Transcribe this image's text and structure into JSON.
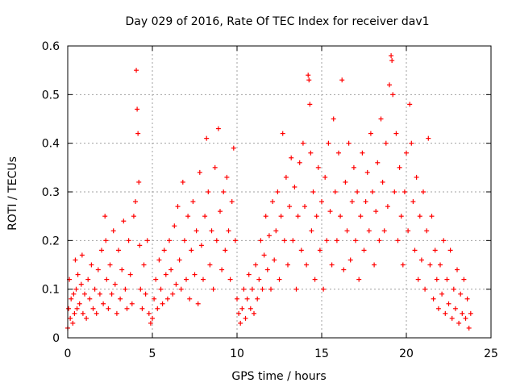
{
  "chart_data": {
    "type": "scatter",
    "title": "Day 029 of 2016, Rate Of TEC Index for receiver dav1",
    "xlabel": "GPS time / hours",
    "ylabel": "ROTI / TECUs",
    "xlim": [
      0,
      25
    ],
    "ylim": [
      0,
      0.6
    ],
    "x_ticks": [
      "0",
      "5",
      "10",
      "15",
      "20",
      "25"
    ],
    "x_tick_values": [
      0,
      5,
      10,
      15,
      20,
      25
    ],
    "y_ticks": [
      "0",
      "0.1",
      "0.2",
      "0.3",
      "0.4",
      "0.5",
      "0.6"
    ],
    "y_tick_values": [
      0,
      0.1,
      0.2,
      0.3,
      0.4,
      0.5,
      0.6
    ],
    "grid": true,
    "marker": "+",
    "color": "#ff0000",
    "series": [
      {
        "values_note": "",
        "points": [
          [
            0.0,
            0.02
          ],
          [
            0.05,
            0.06
          ],
          [
            0.1,
            0.12
          ],
          [
            0.15,
            0.04
          ],
          [
            0.2,
            0.08
          ],
          [
            0.3,
            0.03
          ],
          [
            0.35,
            0.09
          ],
          [
            0.4,
            0.05
          ],
          [
            0.45,
            0.16
          ],
          [
            0.5,
            0.1
          ],
          [
            0.55,
            0.06
          ],
          [
            0.6,
            0.13
          ],
          [
            0.7,
            0.07
          ],
          [
            0.8,
            0.11
          ],
          [
            0.85,
            0.17
          ],
          [
            0.9,
            0.05
          ],
          [
            1.0,
            0.09
          ],
          [
            1.1,
            0.04
          ],
          [
            1.2,
            0.12
          ],
          [
            1.3,
            0.08
          ],
          [
            1.4,
            0.15
          ],
          [
            1.5,
            0.06
          ],
          [
            1.6,
            0.1
          ],
          [
            1.7,
            0.05
          ],
          [
            1.8,
            0.14
          ],
          [
            1.9,
            0.09
          ],
          [
            2.0,
            0.18
          ],
          [
            2.1,
            0.07
          ],
          [
            2.2,
            0.25
          ],
          [
            2.25,
            0.2
          ],
          [
            2.3,
            0.12
          ],
          [
            2.4,
            0.06
          ],
          [
            2.5,
            0.15
          ],
          [
            2.6,
            0.09
          ],
          [
            2.7,
            0.22
          ],
          [
            2.8,
            0.11
          ],
          [
            2.9,
            0.05
          ],
          [
            3.0,
            0.18
          ],
          [
            3.1,
            0.08
          ],
          [
            3.2,
            0.14
          ],
          [
            3.3,
            0.24
          ],
          [
            3.4,
            0.1
          ],
          [
            3.5,
            0.06
          ],
          [
            3.6,
            0.2
          ],
          [
            3.7,
            0.13
          ],
          [
            3.8,
            0.07
          ],
          [
            3.9,
            0.25
          ],
          [
            4.0,
            0.28
          ],
          [
            4.05,
            0.55
          ],
          [
            4.1,
            0.47
          ],
          [
            4.15,
            0.42
          ],
          [
            4.2,
            0.32
          ],
          [
            4.25,
            0.19
          ],
          [
            4.3,
            0.1
          ],
          [
            4.4,
            0.06
          ],
          [
            4.5,
            0.15
          ],
          [
            4.6,
            0.09
          ],
          [
            4.7,
            0.2
          ],
          [
            4.8,
            0.05
          ],
          [
            4.9,
            0.03
          ],
          [
            5.0,
            0.04
          ],
          [
            5.1,
            0.08
          ],
          [
            5.2,
            0.12
          ],
          [
            5.3,
            0.06
          ],
          [
            5.4,
            0.16
          ],
          [
            5.5,
            0.1
          ],
          [
            5.6,
            0.07
          ],
          [
            5.7,
            0.18
          ],
          [
            5.8,
            0.13
          ],
          [
            5.9,
            0.08
          ],
          [
            6.0,
            0.2
          ],
          [
            6.1,
            0.14
          ],
          [
            6.2,
            0.09
          ],
          [
            6.3,
            0.23
          ],
          [
            6.4,
            0.11
          ],
          [
            6.5,
            0.27
          ],
          [
            6.6,
            0.16
          ],
          [
            6.7,
            0.1
          ],
          [
            6.8,
            0.32
          ],
          [
            6.9,
            0.2
          ],
          [
            7.0,
            0.12
          ],
          [
            7.1,
            0.25
          ],
          [
            7.2,
            0.08
          ],
          [
            7.3,
            0.18
          ],
          [
            7.4,
            0.28
          ],
          [
            7.5,
            0.13
          ],
          [
            7.6,
            0.22
          ],
          [
            7.7,
            0.07
          ],
          [
            7.8,
            0.34
          ],
          [
            7.9,
            0.19
          ],
          [
            8.0,
            0.12
          ],
          [
            8.1,
            0.25
          ],
          [
            8.2,
            0.41
          ],
          [
            8.3,
            0.3
          ],
          [
            8.4,
            0.15
          ],
          [
            8.5,
            0.22
          ],
          [
            8.6,
            0.1
          ],
          [
            8.7,
            0.35
          ],
          [
            8.8,
            0.2
          ],
          [
            8.9,
            0.43
          ],
          [
            9.0,
            0.26
          ],
          [
            9.1,
            0.14
          ],
          [
            9.2,
            0.3
          ],
          [
            9.3,
            0.18
          ],
          [
            9.4,
            0.33
          ],
          [
            9.5,
            0.22
          ],
          [
            9.6,
            0.12
          ],
          [
            9.7,
            0.28
          ],
          [
            9.8,
            0.39
          ],
          [
            9.9,
            0.2
          ],
          [
            10.0,
            0.08
          ],
          [
            10.1,
            0.05
          ],
          [
            10.2,
            0.03
          ],
          [
            10.3,
            0.06
          ],
          [
            10.4,
            0.1
          ],
          [
            10.5,
            0.04
          ],
          [
            10.6,
            0.08
          ],
          [
            10.7,
            0.13
          ],
          [
            10.8,
            0.06
          ],
          [
            10.9,
            0.1
          ],
          [
            11.0,
            0.05
          ],
          [
            11.1,
            0.15
          ],
          [
            11.2,
            0.08
          ],
          [
            11.3,
            0.12
          ],
          [
            11.4,
            0.2
          ],
          [
            11.5,
            0.1
          ],
          [
            11.6,
            0.17
          ],
          [
            11.7,
            0.25
          ],
          [
            11.8,
            0.14
          ],
          [
            11.9,
            0.21
          ],
          [
            12.0,
            0.1
          ],
          [
            12.1,
            0.28
          ],
          [
            12.2,
            0.16
          ],
          [
            12.3,
            0.22
          ],
          [
            12.4,
            0.3
          ],
          [
            12.5,
            0.12
          ],
          [
            12.6,
            0.25
          ],
          [
            12.7,
            0.42
          ],
          [
            12.8,
            0.2
          ],
          [
            12.9,
            0.33
          ],
          [
            13.0,
            0.15
          ],
          [
            13.1,
            0.27
          ],
          [
            13.2,
            0.37
          ],
          [
            13.3,
            0.2
          ],
          [
            13.4,
            0.31
          ],
          [
            13.5,
            0.1
          ],
          [
            13.6,
            0.25
          ],
          [
            13.7,
            0.36
          ],
          [
            13.8,
            0.18
          ],
          [
            13.9,
            0.4
          ],
          [
            14.0,
            0.27
          ],
          [
            14.1,
            0.15
          ],
          [
            14.2,
            0.54
          ],
          [
            14.25,
            0.53
          ],
          [
            14.3,
            0.48
          ],
          [
            14.35,
            0.38
          ],
          [
            14.4,
            0.22
          ],
          [
            14.5,
            0.3
          ],
          [
            14.6,
            0.12
          ],
          [
            14.7,
            0.25
          ],
          [
            14.8,
            0.35
          ],
          [
            14.9,
            0.18
          ],
          [
            15.0,
            0.28
          ],
          [
            15.1,
            0.1
          ],
          [
            15.2,
            0.33
          ],
          [
            15.3,
            0.2
          ],
          [
            15.4,
            0.4
          ],
          [
            15.5,
            0.26
          ],
          [
            15.6,
            0.15
          ],
          [
            15.7,
            0.45
          ],
          [
            15.8,
            0.3
          ],
          [
            15.9,
            0.2
          ],
          [
            16.0,
            0.38
          ],
          [
            16.1,
            0.25
          ],
          [
            16.2,
            0.53
          ],
          [
            16.3,
            0.14
          ],
          [
            16.4,
            0.32
          ],
          [
            16.5,
            0.22
          ],
          [
            16.6,
            0.4
          ],
          [
            16.7,
            0.16
          ],
          [
            16.8,
            0.28
          ],
          [
            16.9,
            0.35
          ],
          [
            17.0,
            0.2
          ],
          [
            17.1,
            0.3
          ],
          [
            17.2,
            0.12
          ],
          [
            17.3,
            0.25
          ],
          [
            17.4,
            0.38
          ],
          [
            17.5,
            0.18
          ],
          [
            17.6,
            0.28
          ],
          [
            17.7,
            0.34
          ],
          [
            17.8,
            0.22
          ],
          [
            17.9,
            0.42
          ],
          [
            18.0,
            0.3
          ],
          [
            18.1,
            0.15
          ],
          [
            18.2,
            0.26
          ],
          [
            18.3,
            0.36
          ],
          [
            18.4,
            0.2
          ],
          [
            18.5,
            0.45
          ],
          [
            18.6,
            0.32
          ],
          [
            18.7,
            0.22
          ],
          [
            18.8,
            0.4
          ],
          [
            18.9,
            0.27
          ],
          [
            19.0,
            0.52
          ],
          [
            19.1,
            0.58
          ],
          [
            19.15,
            0.57
          ],
          [
            19.2,
            0.5
          ],
          [
            19.3,
            0.3
          ],
          [
            19.4,
            0.42
          ],
          [
            19.5,
            0.2
          ],
          [
            19.6,
            0.35
          ],
          [
            19.7,
            0.25
          ],
          [
            19.8,
            0.15
          ],
          [
            19.9,
            0.3
          ],
          [
            20.0,
            0.38
          ],
          [
            20.1,
            0.22
          ],
          [
            20.2,
            0.48
          ],
          [
            20.3,
            0.4
          ],
          [
            20.4,
            0.28
          ],
          [
            20.5,
            0.18
          ],
          [
            20.6,
            0.33
          ],
          [
            20.7,
            0.12
          ],
          [
            20.8,
            0.25
          ],
          [
            20.9,
            0.16
          ],
          [
            21.0,
            0.3
          ],
          [
            21.1,
            0.1
          ],
          [
            21.2,
            0.22
          ],
          [
            21.3,
            0.41
          ],
          [
            21.4,
            0.15
          ],
          [
            21.5,
            0.25
          ],
          [
            21.6,
            0.08
          ],
          [
            21.7,
            0.18
          ],
          [
            21.8,
            0.12
          ],
          [
            21.9,
            0.06
          ],
          [
            22.0,
            0.15
          ],
          [
            22.1,
            0.09
          ],
          [
            22.2,
            0.2
          ],
          [
            22.3,
            0.05
          ],
          [
            22.4,
            0.12
          ],
          [
            22.5,
            0.07
          ],
          [
            22.6,
            0.18
          ],
          [
            22.7,
            0.04
          ],
          [
            22.8,
            0.1
          ],
          [
            22.9,
            0.06
          ],
          [
            23.0,
            0.14
          ],
          [
            23.1,
            0.03
          ],
          [
            23.2,
            0.09
          ],
          [
            23.3,
            0.05
          ],
          [
            23.4,
            0.12
          ],
          [
            23.5,
            0.04
          ],
          [
            23.6,
            0.08
          ],
          [
            23.7,
            0.02
          ],
          [
            23.8,
            0.05
          ]
        ]
      }
    ]
  }
}
